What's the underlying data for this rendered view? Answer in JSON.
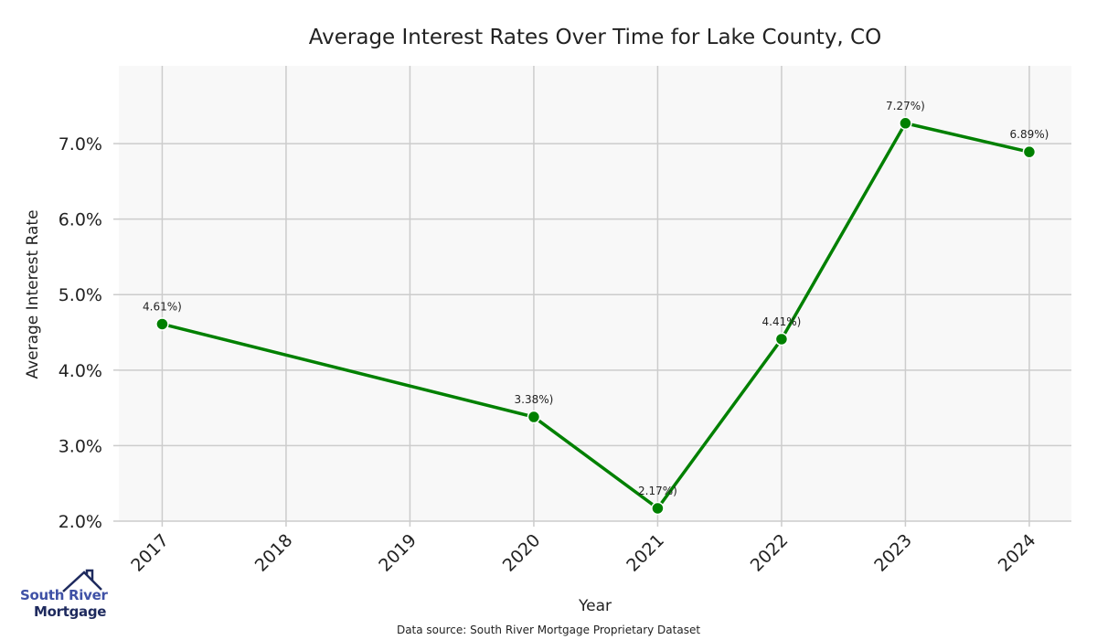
{
  "chart_data": {
    "type": "line",
    "title": "Average Interest Rates Over Time for Lake County, CO",
    "xlabel": "Year",
    "ylabel": "Average Interest Rate",
    "x": [
      2017,
      2020,
      2021,
      2022,
      2023,
      2024
    ],
    "xticks": [
      "2017",
      "2018",
      "2019",
      "2020",
      "2021",
      "2022",
      "2023",
      "2024"
    ],
    "yticks": [
      "2.0%",
      "3.0%",
      "4.0%",
      "5.0%",
      "6.0%",
      "7.0%"
    ],
    "ytick_values": [
      2,
      3,
      4,
      5,
      6,
      7
    ],
    "series": [
      {
        "name": "Average Interest Rate",
        "values": [
          4.61,
          3.38,
          2.17,
          4.41,
          7.27,
          6.89
        ],
        "color": "#008000"
      }
    ],
    "data_labels": [
      "4.61%)",
      "3.38%)",
      "2.17%)",
      "4.41%)",
      "7.27%)",
      "6.89%)"
    ],
    "xlim": [
      2016.65,
      2024.34
    ],
    "ylim": [
      2.0,
      8.03
    ],
    "grid": true,
    "background": "#f8f8f8"
  },
  "footer": {
    "source": "Data source: South River Mortgage Proprietary Dataset"
  },
  "logo": {
    "line1": "South River",
    "line2": "Mortgage"
  }
}
